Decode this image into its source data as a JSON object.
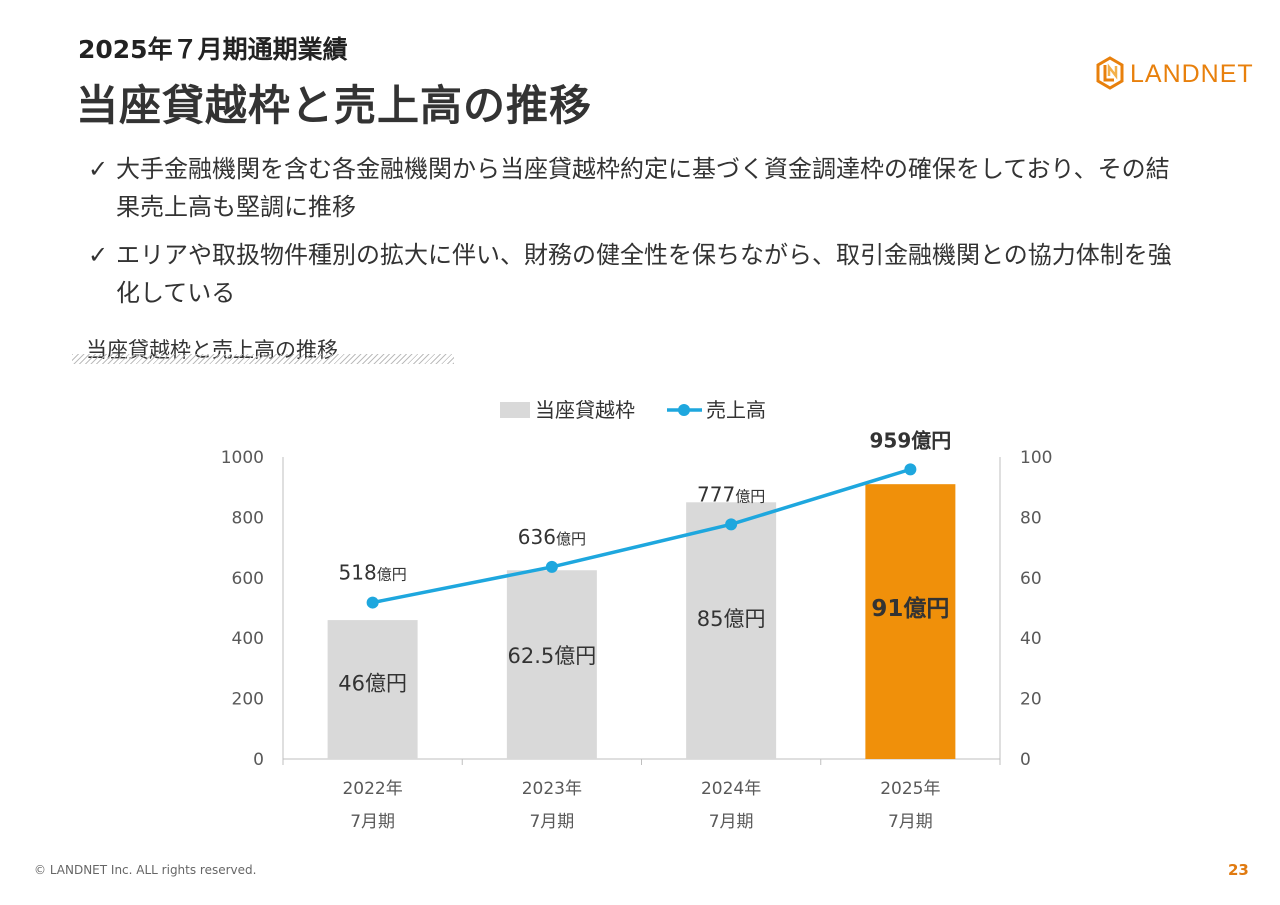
{
  "header": {
    "subtitle": "2025年７月期通期業績",
    "title": "当座貸越枠と売上高の推移"
  },
  "logo": {
    "text": "LANDNET",
    "icon": "landnet-logo-icon",
    "color": "#e8800c"
  },
  "bullets": [
    {
      "icon": "checkmark-icon",
      "mark": "✓",
      "text": "大手金融機関を含む各金融機関から当座貸越枠約定に基づく資金調達枠の確保をしており、その結果売上高も堅調に推移"
    },
    {
      "icon": "checkmark-icon",
      "mark": "✓",
      "text": "エリアや取扱物件種別の拡大に伴い、財務の健全性を保ちながら、取引金融機関との協力体制を強化している"
    }
  ],
  "section_label": "当座貸越枠と売上高の推移",
  "chart_data": {
    "type": "bar",
    "categories": [
      [
        "2022年",
        "7月期"
      ],
      [
        "2023年",
        "7月期"
      ],
      [
        "2024年",
        "7月期"
      ],
      [
        "2025年",
        "7月期"
      ]
    ],
    "left_axis": {
      "ticks": [
        "0",
        "200",
        "400",
        "600",
        "800",
        "1000"
      ],
      "ylim": [
        0,
        1000
      ]
    },
    "right_axis": {
      "ticks": [
        "0",
        "20",
        "40",
        "60",
        "80",
        "100"
      ],
      "ylim": [
        0,
        100
      ]
    },
    "series": [
      {
        "name": "当座貸越枠",
        "type": "bar",
        "axis": "right",
        "values": [
          46,
          62.5,
          85,
          91
        ],
        "labels": [
          "46億円",
          "62.5億円",
          "85億円",
          "91億円"
        ],
        "color": "#d9d9d9",
        "highlight_color": "#f0900a",
        "highlight_index": 3
      },
      {
        "name": "売上高",
        "type": "line",
        "axis": "left",
        "values": [
          518,
          636,
          777,
          959
        ],
        "label_numbers": [
          "518",
          "636",
          "777",
          "959"
        ],
        "label_unit": "億円",
        "color": "#1ea7de"
      }
    ],
    "legend": "top",
    "grid": false
  },
  "footer": {
    "copyright": "© LANDNET Inc. ALL rights reserved.",
    "page_number": "23"
  }
}
